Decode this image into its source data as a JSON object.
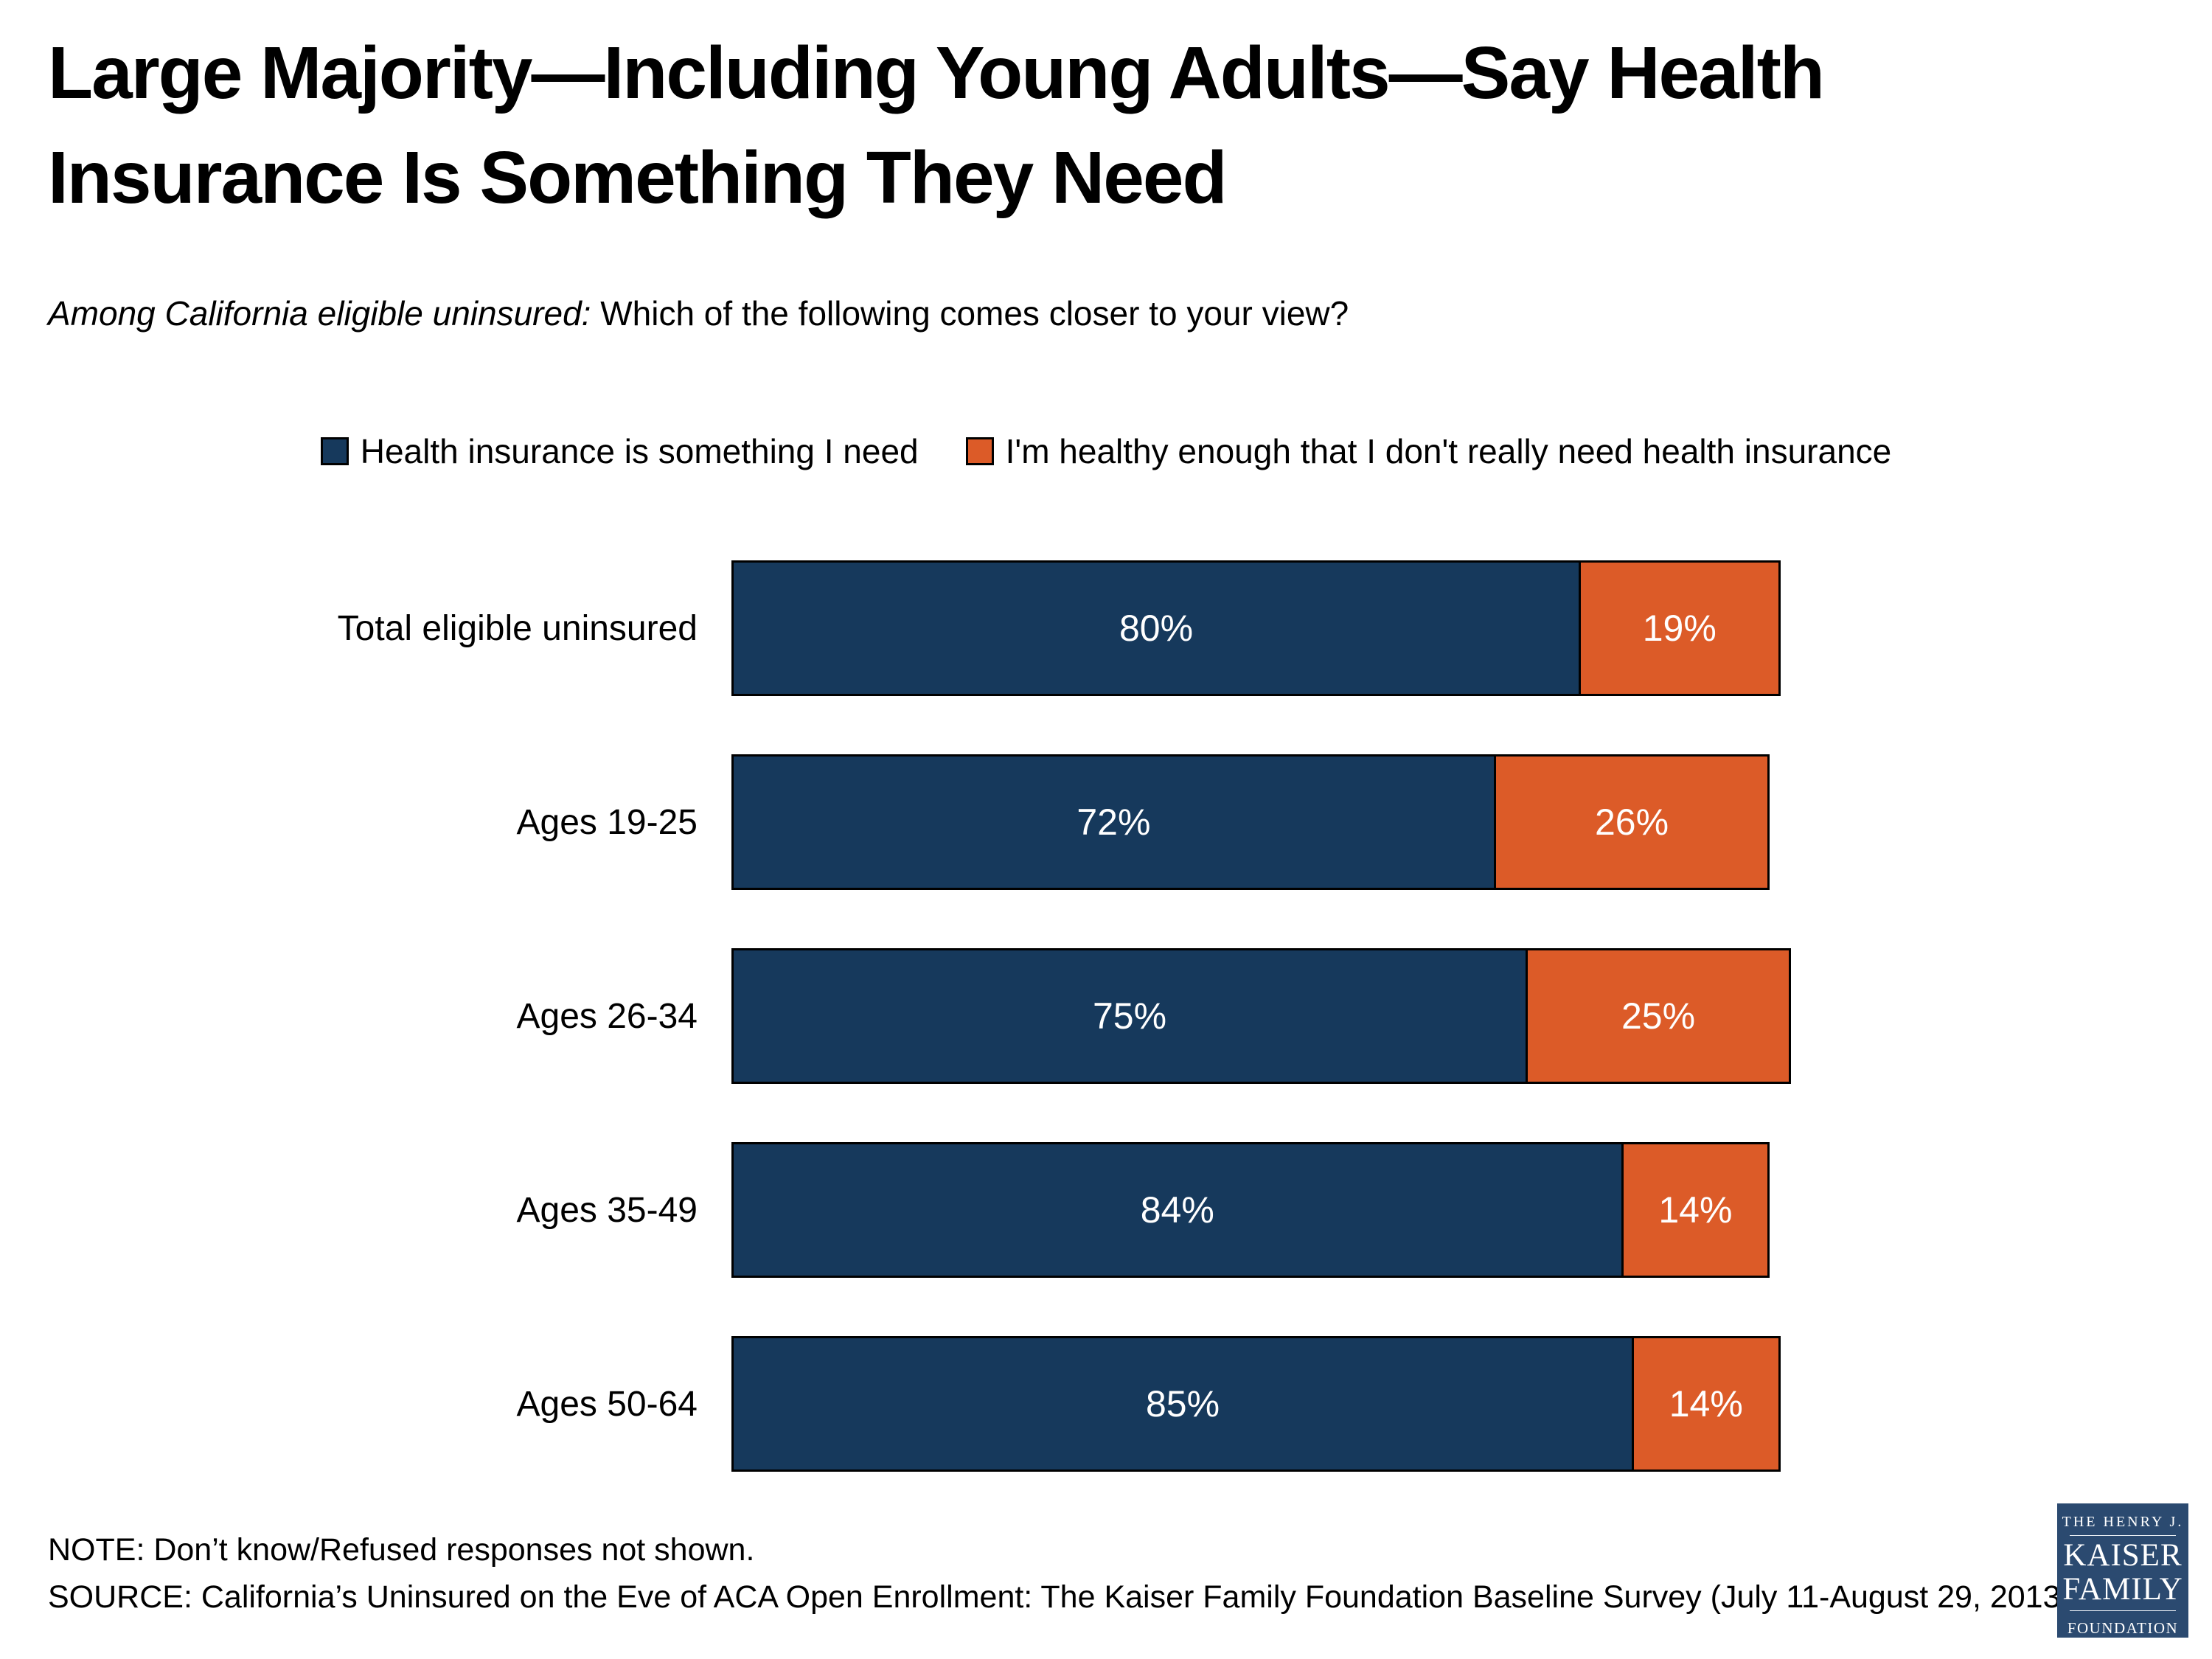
{
  "title": {
    "line1": "Large Majority—Including Young Adults—Say Health",
    "line2": "Insurance Is Something They Need"
  },
  "subtitle": {
    "italic": "Among California eligible uninsured:",
    "regular": " Which of the following comes closer to your view?"
  },
  "legend": {
    "items": [
      {
        "label": "Health insurance is something I need",
        "color": "#16395C"
      },
      {
        "label": "I'm healthy enough that I don't really need health insurance",
        "color": "#DC5B28"
      }
    ]
  },
  "chart_data": {
    "type": "bar",
    "orientation": "horizontal",
    "stacked": true,
    "categories": [
      "Total eligible uninsured",
      "Ages 19-25",
      "Ages 26-34",
      "Ages 35-49",
      "Ages 50-64"
    ],
    "series": [
      {
        "name": "Health insurance is something I need",
        "color": "#16395C",
        "values": [
          80,
          72,
          75,
          84,
          85
        ]
      },
      {
        "name": "I'm healthy enough that I don't really need health insurance",
        "color": "#DC5B28",
        "values": [
          19,
          26,
          25,
          14,
          14
        ]
      }
    ],
    "value_label_format": "{v}%",
    "value_label_color": "#ffffff",
    "bar_border_color": "#000000",
    "xlim": [
      0,
      100
    ],
    "grid": false,
    "legend_position": "top-center"
  },
  "footer": {
    "note": "NOTE: Don’t know/Refused responses not shown.",
    "source": "SOURCE: California’s Uninsured on the Eve of ACA Open Enrollment: The Kaiser Family Foundation Baseline Survey (July 11-August 29, 2013)"
  },
  "logo": {
    "line1": "THE HENRY J.",
    "line2": "KAISER",
    "line3": "FAMILY",
    "line4": "FOUNDATION",
    "bg_color": "#2B4A70"
  }
}
